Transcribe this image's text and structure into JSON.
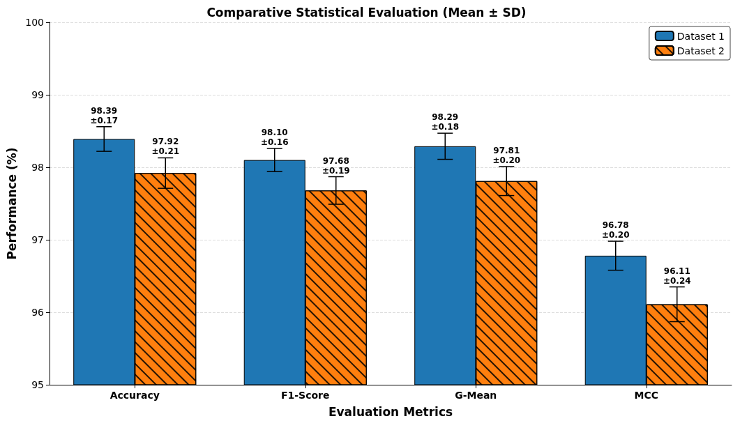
{
  "chart_data": {
    "type": "bar",
    "title": "Comparative Statistical Evaluation (Mean ± SD)",
    "xlabel": "Evaluation Metrics",
    "ylabel": "Performance (%)",
    "categories": [
      "Accuracy",
      "F1-Score",
      "G-Mean",
      "MCC"
    ],
    "series": [
      {
        "name": "Dataset 1",
        "color": "#1f77b4",
        "values": [
          98.39,
          98.1,
          98.29,
          96.78
        ],
        "errors": [
          0.17,
          0.16,
          0.18,
          0.2
        ],
        "value_labels": [
          "98.39\n±0.17",
          "98.10\n±0.16",
          "98.29\n±0.18",
          "96.78\n±0.20"
        ]
      },
      {
        "name": "Dataset 2",
        "color": "#ff7f0e",
        "values": [
          97.92,
          97.68,
          97.81,
          96.11
        ],
        "errors": [
          0.21,
          0.19,
          0.2,
          0.24
        ],
        "value_labels": [
          "97.92\n±0.21",
          "97.68\n±0.19",
          "97.81\n±0.20",
          "96.11\n±0.24"
        ]
      }
    ],
    "ylim": [
      95,
      100
    ],
    "yticks": [
      95,
      96,
      97,
      98,
      99,
      100
    ],
    "grid": "y",
    "legend": "top right"
  }
}
